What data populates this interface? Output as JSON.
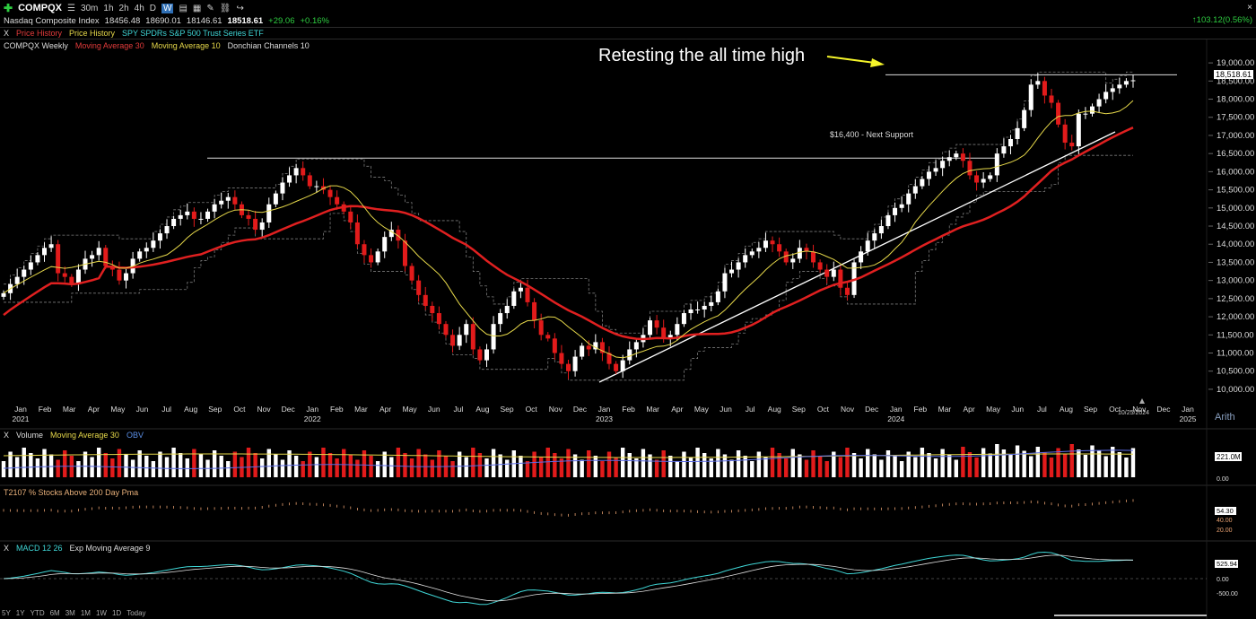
{
  "toolbar": {
    "symbol": "COMPQX",
    "timeframes": [
      "30m",
      "1h",
      "2h",
      "4h",
      "D",
      "W"
    ],
    "active_timeframe": "W",
    "right_close": "×"
  },
  "ticker": {
    "name": "Nasdaq Composite Index",
    "open": "18456.48",
    "high": "18690.01",
    "low": "18146.61",
    "last": "18518.61",
    "change": "+29.06",
    "change_pct": "+0.16%",
    "right_value": "103.12",
    "right_pct": "(0.56%)"
  },
  "overlay_bar": {
    "close": "X",
    "items": [
      "Price History",
      "Price History",
      "SPY SPDRs S&P 500 Trust Series ETF"
    ]
  },
  "main_panel": {
    "label": "COMPQX Weekly",
    "studies": [
      "Moving Average 30",
      "Moving Average 10",
      "Donchian Channels 10"
    ],
    "annotation": "Retesting the all time high",
    "support_label": "$16,400 - Next Support",
    "last_price_tag": "18,518.61",
    "scale_mode": "Arith",
    "date_tag": "10/25/2024"
  },
  "volume_panel": {
    "close": "X",
    "label": "Volume",
    "studies": [
      "Moving Average 30",
      "OBV"
    ],
    "axis": [
      "221.0M",
      "0.00"
    ]
  },
  "t2107_panel": {
    "label": "T2107 % Stocks Above 200 Day Pma",
    "axis": [
      "54.30",
      "40.00",
      "20.00"
    ]
  },
  "macd_panel": {
    "close": "X",
    "label": "MACD 12 26",
    "study": "Exp Moving Average 9",
    "axis": [
      "525.94",
      "0.00",
      "-500.00"
    ]
  },
  "range_buttons": [
    "5Y",
    "1Y",
    "YTD",
    "6M",
    "3M",
    "1M",
    "1W",
    "1D",
    "Today"
  ],
  "colors": {
    "up_candle": "#ffffff",
    "down_candle": "#e21b1b",
    "ma30": "#e02020",
    "ma10": "#e6d84a",
    "donchian": "#7a7a7a",
    "obv": "#5b6be6",
    "t2107": "#e8a070",
    "macd": "#3fd6d6",
    "macd_signal": "#e0e0e0",
    "annotation_arrow": "#f5f52a"
  },
  "chart_data": {
    "type": "candlestick",
    "timeframe": "weekly",
    "y_axis_ticks": [
      10000,
      10500,
      11000,
      11500,
      12000,
      12500,
      13000,
      13500,
      14000,
      14500,
      15000,
      15500,
      16000,
      16500,
      17000,
      17500,
      18000,
      18500,
      19000
    ],
    "y_axis_labels": [
      "10,000.00",
      "10,500.00",
      "11,000.00",
      "11,500.00",
      "12,000.00",
      "12,500.00",
      "13,000.00",
      "13,500.00",
      "14,000.00",
      "14,500.00",
      "15,000.00",
      "15,500.00",
      "16,000.00",
      "16,500.00",
      "17,000.00",
      "17,500.00",
      "18,000.00",
      "18,500.00",
      "19,000.00"
    ],
    "ylim": [
      9850,
      19250
    ],
    "x_axis_labels": [
      {
        "m": "Jan",
        "y": "2021"
      },
      {
        "m": "Feb"
      },
      {
        "m": "Mar"
      },
      {
        "m": "Apr"
      },
      {
        "m": "May"
      },
      {
        "m": "Jun"
      },
      {
        "m": "Jul"
      },
      {
        "m": "Aug"
      },
      {
        "m": "Sep"
      },
      {
        "m": "Oct"
      },
      {
        "m": "Nov"
      },
      {
        "m": "Dec"
      },
      {
        "m": "Jan",
        "y": "2022"
      },
      {
        "m": "Feb"
      },
      {
        "m": "Mar"
      },
      {
        "m": "Apr"
      },
      {
        "m": "May"
      },
      {
        "m": "Jun"
      },
      {
        "m": "Jul"
      },
      {
        "m": "Aug"
      },
      {
        "m": "Sep"
      },
      {
        "m": "Oct"
      },
      {
        "m": "Nov"
      },
      {
        "m": "Dec"
      },
      {
        "m": "Jan",
        "y": "2023"
      },
      {
        "m": "Feb"
      },
      {
        "m": "Mar"
      },
      {
        "m": "Apr"
      },
      {
        "m": "May"
      },
      {
        "m": "Jun"
      },
      {
        "m": "Jul"
      },
      {
        "m": "Aug"
      },
      {
        "m": "Sep"
      },
      {
        "m": "Oct"
      },
      {
        "m": "Nov"
      },
      {
        "m": "Dec"
      },
      {
        "m": "Jan",
        "y": "2024"
      },
      {
        "m": "Feb"
      },
      {
        "m": "Mar"
      },
      {
        "m": "Apr"
      },
      {
        "m": "May"
      },
      {
        "m": "Jun"
      },
      {
        "m": "Jul"
      },
      {
        "m": "Aug"
      },
      {
        "m": "Sep"
      },
      {
        "m": "Oct"
      },
      {
        "m": "Nov"
      },
      {
        "m": "Dec"
      },
      {
        "m": "Jan",
        "y": "2025"
      }
    ],
    "resistance_level": 18671,
    "support_level": 16400,
    "closes": [
      12650,
      12900,
      13100,
      13300,
      13500,
      13700,
      13900,
      14000,
      13200,
      13100,
      12900,
      13300,
      13600,
      13700,
      13900,
      13400,
      13300,
      13000,
      13200,
      13600,
      13800,
      13900,
      14100,
      14300,
      14500,
      14700,
      14800,
      14900,
      14700,
      14700,
      14900,
      15100,
      15200,
      15300,
      15100,
      14800,
      14700,
      14400,
      14600,
      15100,
      15400,
      15700,
      15900,
      16100,
      15900,
      15600,
      15600,
      15500,
      15300,
      15100,
      14900,
      14600,
      14000,
      13700,
      13500,
      13800,
      14200,
      14400,
      14100,
      13400,
      13000,
      12600,
      12300,
      12100,
      11800,
      11500,
      11200,
      11500,
      11800,
      11100,
      10800,
      11100,
      11800,
      12100,
      12300,
      12700,
      12800,
      12400,
      11900,
      11500,
      11400,
      11000,
      10700,
      10500,
      10900,
      11200,
      11100,
      11300,
      11000,
      10700,
      10500,
      10800,
      11100,
      11300,
      11500,
      11900,
      11700,
      11400,
      11500,
      11800,
      12100,
      12200,
      12200,
      12300,
      12400,
      12700,
      13200,
      13300,
      13500,
      13700,
      13800,
      13900,
      14100,
      14000,
      13800,
      13500,
      13600,
      13900,
      13800,
      13500,
      13300,
      13100,
      13300,
      12800,
      12600,
      13500,
      13800,
      14100,
      14300,
      14500,
      14800,
      15000,
      15100,
      15400,
      15600,
      15800,
      16000,
      16100,
      16300,
      16400,
      16500,
      16300,
      15900,
      15700,
      15800,
      15900,
      16500,
      16700,
      16900,
      17200,
      17700,
      18400,
      18500,
      18100,
      17900,
      17300,
      16800,
      16700,
      17600,
      17600,
      17800,
      18000,
      18200,
      18300,
      18400,
      18500,
      18520
    ]
  }
}
